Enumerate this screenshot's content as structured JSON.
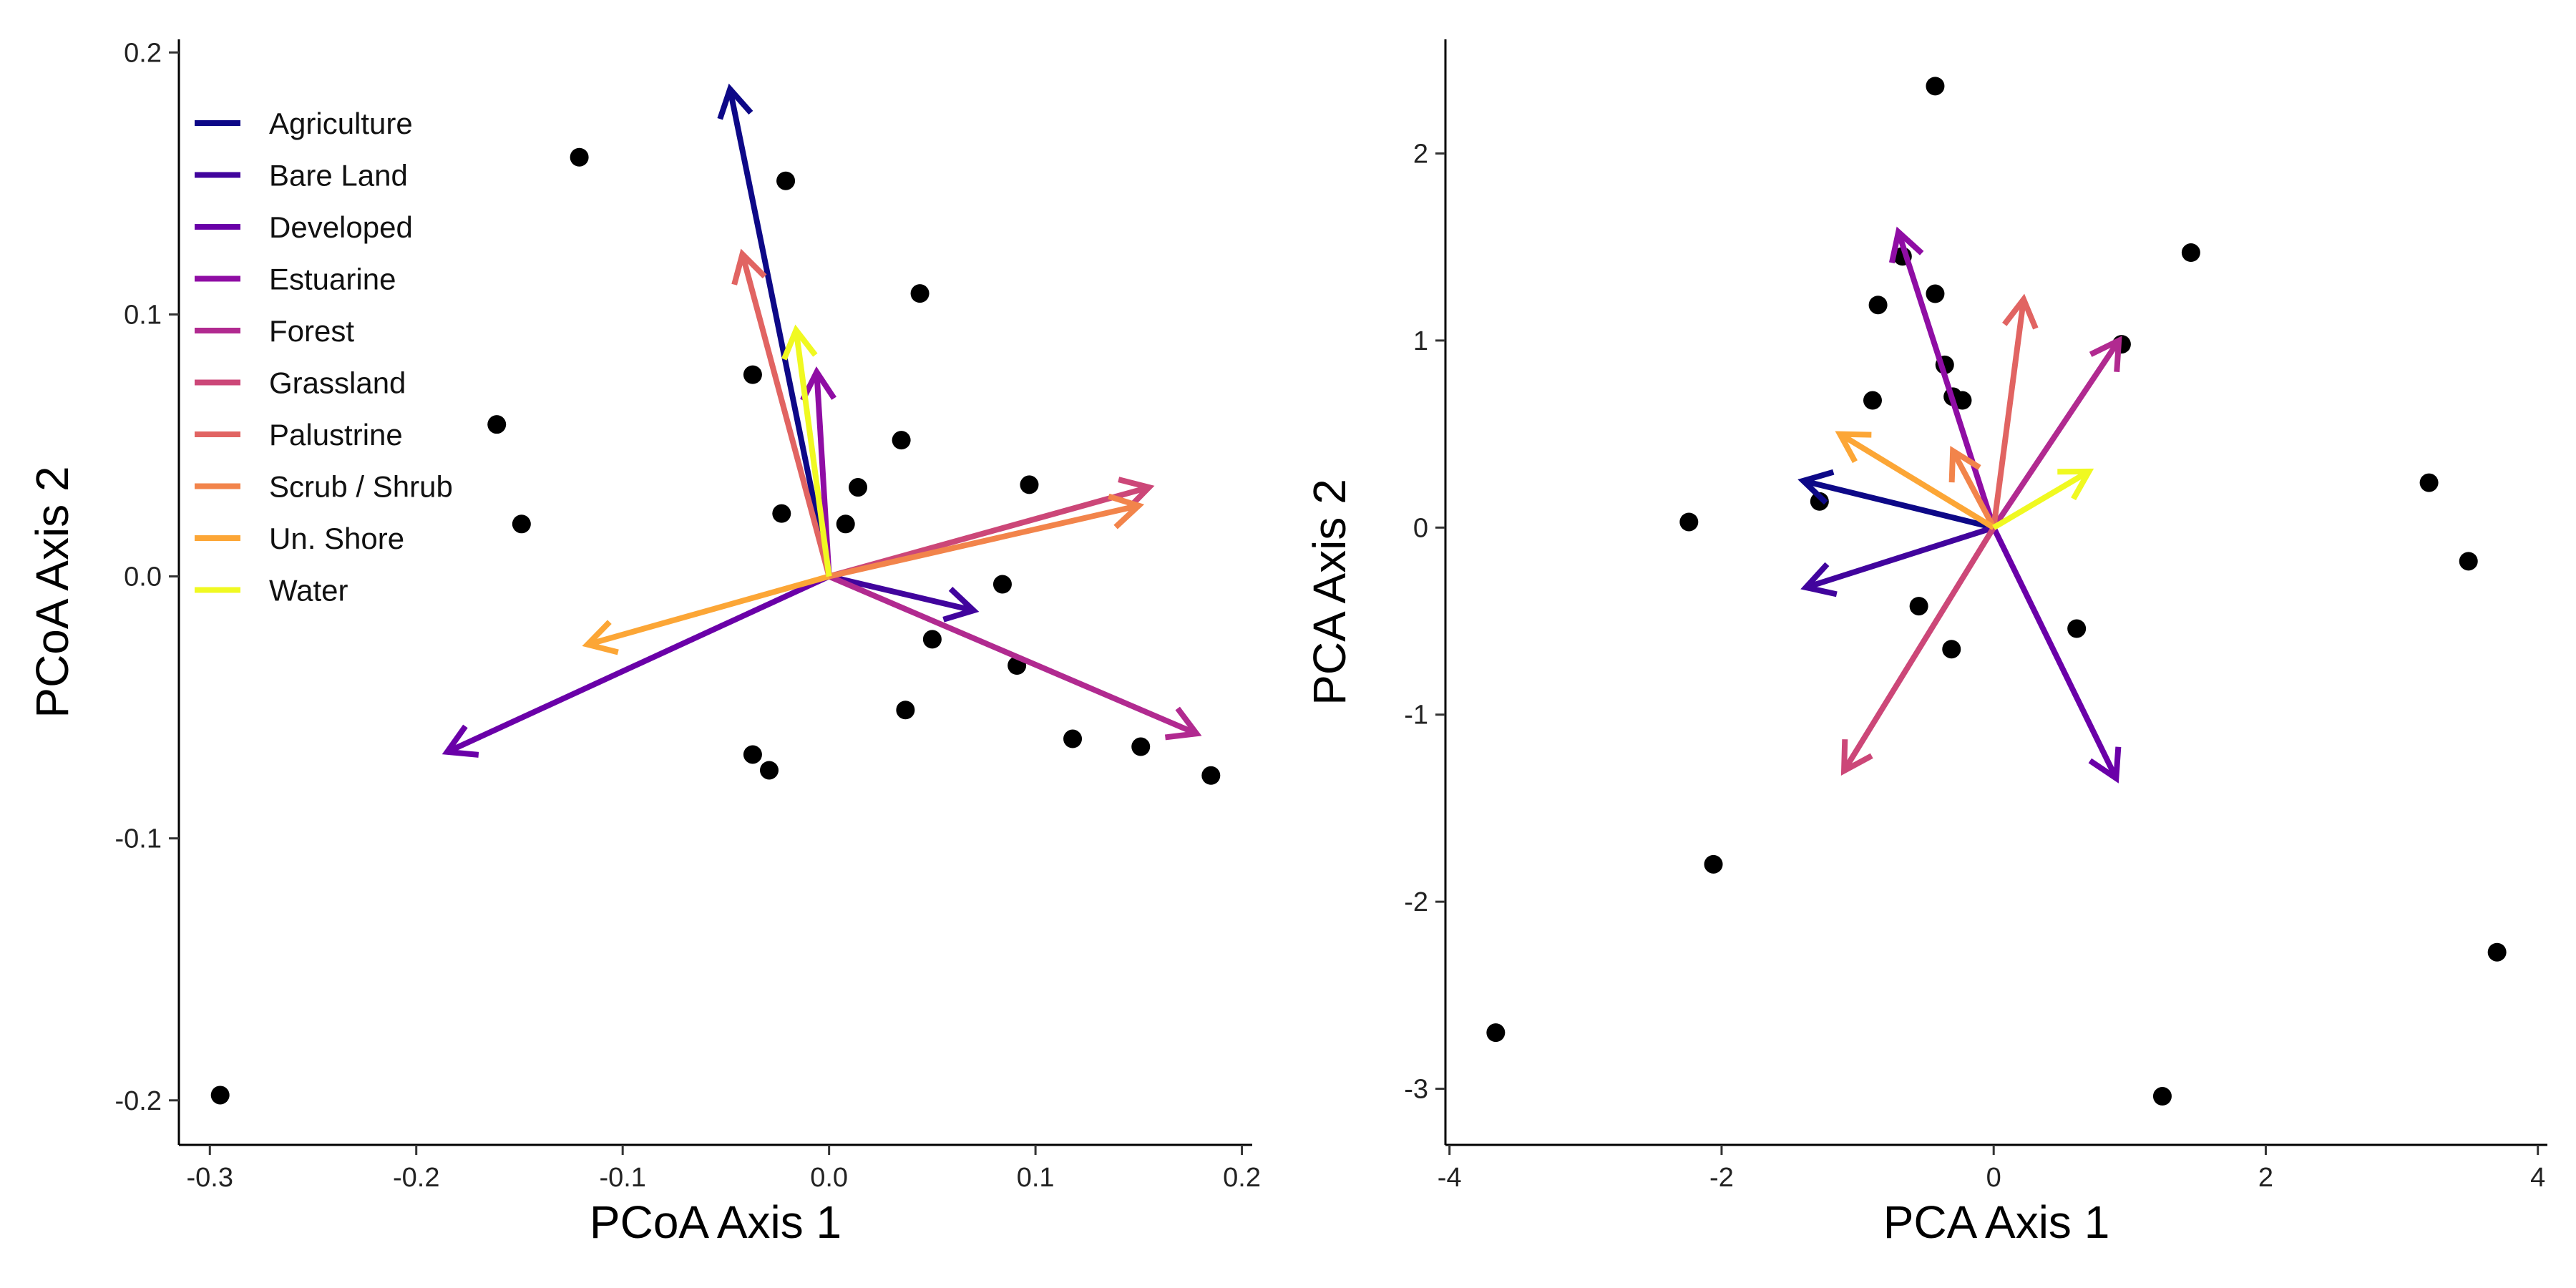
{
  "colors": {
    "Agriculture": "#0d0887",
    "Bare Land": "#41049d",
    "Developed": "#6a00a8",
    "Estuarine": "#8f0da4",
    "Forest": "#b12a90",
    "Grassland": "#cc4778",
    "Palustrine": "#e16462",
    "Scrub / Shrub": "#f2844b",
    "Un. Shore": "#fca636",
    "Water": "#fcce25",
    "Water_arrow": "#f0f921",
    "points": "#000000",
    "axis": "#000000"
  },
  "legend": {
    "items": [
      "Agriculture",
      "Bare Land",
      "Developed",
      "Estuarine",
      "Forest",
      "Grassland",
      "Palustrine",
      "Scrub / Shrub",
      "Un. Shore",
      "Water"
    ]
  },
  "chart_data": [
    {
      "type": "scatter",
      "xlabel": "PCoA Axis 1",
      "ylabel": "PCoA Axis 2",
      "xlim": [
        -0.315,
        0.205
      ],
      "ylim": [
        -0.217,
        0.205
      ],
      "xticks": [
        -0.3,
        -0.2,
        -0.1,
        0.0,
        0.1,
        0.2
      ],
      "xtick_labels": [
        "-0.3",
        "-0.2",
        "-0.1",
        "0.0",
        "0.1",
        "0.2"
      ],
      "yticks": [
        -0.2,
        -0.1,
        0.0,
        0.1,
        0.2
      ],
      "ytick_labels": [
        "-0.2",
        "-0.1",
        "0.0",
        "0.1",
        "0.2"
      ],
      "points": [
        {
          "x": -0.295,
          "y": -0.198
        },
        {
          "x": -0.121,
          "y": 0.16
        },
        {
          "x": -0.021,
          "y": 0.151
        },
        {
          "x": 0.044,
          "y": 0.108
        },
        {
          "x": -0.161,
          "y": 0.058
        },
        {
          "x": -0.149,
          "y": 0.02
        },
        {
          "x": -0.037,
          "y": 0.077
        },
        {
          "x": 0.035,
          "y": 0.052
        },
        {
          "x": 0.097,
          "y": 0.035
        },
        {
          "x": 0.014,
          "y": 0.034
        },
        {
          "x": -0.023,
          "y": 0.024
        },
        {
          "x": 0.008,
          "y": 0.02
        },
        {
          "x": 0.084,
          "y": -0.003
        },
        {
          "x": 0.05,
          "y": -0.024
        },
        {
          "x": 0.091,
          "y": -0.034
        },
        {
          "x": 0.037,
          "y": -0.051
        },
        {
          "x": 0.118,
          "y": -0.062
        },
        {
          "x": 0.151,
          "y": -0.065
        },
        {
          "x": 0.185,
          "y": -0.076
        },
        {
          "x": -0.037,
          "y": -0.068
        },
        {
          "x": -0.029,
          "y": -0.074
        }
      ],
      "arrows": [
        {
          "name": "Agriculture",
          "x": -0.048,
          "y": 0.186
        },
        {
          "name": "Bare Land",
          "x": 0.07,
          "y": -0.013
        },
        {
          "name": "Developed",
          "x": -0.185,
          "y": -0.067
        },
        {
          "name": "Estuarine",
          "x": -0.006,
          "y": 0.078
        },
        {
          "name": "Forest",
          "x": 0.178,
          "y": -0.06
        },
        {
          "name": "Grassland",
          "x": 0.155,
          "y": 0.034
        },
        {
          "name": "Palustrine",
          "x": -0.042,
          "y": 0.123
        },
        {
          "name": "Scrub / Shrub",
          "x": 0.15,
          "y": 0.027
        },
        {
          "name": "Un. Shore",
          "x": -0.117,
          "y": -0.026
        },
        {
          "name": "Water",
          "x": -0.016,
          "y": 0.094
        }
      ]
    },
    {
      "type": "scatter",
      "xlabel": "PCA Axis 1",
      "ylabel": "PCA Axis 2",
      "xlim": [
        -4.03,
        4.07
      ],
      "ylim": [
        -3.3,
        2.61
      ],
      "xticks": [
        -4,
        -2,
        0,
        2,
        4
      ],
      "xtick_labels": [
        "-4",
        "-2",
        "0",
        "2",
        "4"
      ],
      "yticks": [
        -3,
        -2,
        -1,
        0,
        1,
        2
      ],
      "ytick_labels": [
        "-3",
        "-2",
        "-1",
        "0",
        "1",
        "2"
      ],
      "points": [
        {
          "x": -0.43,
          "y": 2.36
        },
        {
          "x": 1.45,
          "y": 1.47
        },
        {
          "x": -0.67,
          "y": 1.45
        },
        {
          "x": -0.43,
          "y": 1.25
        },
        {
          "x": -0.85,
          "y": 1.19
        },
        {
          "x": 0.94,
          "y": 0.98
        },
        {
          "x": -0.36,
          "y": 0.87
        },
        {
          "x": -0.3,
          "y": 0.7
        },
        {
          "x": -0.23,
          "y": 0.68
        },
        {
          "x": -0.89,
          "y": 0.68
        },
        {
          "x": 3.2,
          "y": 0.24
        },
        {
          "x": -1.28,
          "y": 0.14
        },
        {
          "x": -2.24,
          "y": 0.03
        },
        {
          "x": 3.49,
          "y": -0.18
        },
        {
          "x": -0.55,
          "y": -0.42
        },
        {
          "x": 0.61,
          "y": -0.54
        },
        {
          "x": -0.31,
          "y": -0.65
        },
        {
          "x": -2.06,
          "y": -1.8
        },
        {
          "x": 3.7,
          "y": -2.27
        },
        {
          "x": -3.66,
          "y": -2.7
        },
        {
          "x": 1.24,
          "y": -3.04
        }
      ],
      "arrows": [
        {
          "name": "Agriculture",
          "x": -1.4,
          "y": 0.25
        },
        {
          "name": "Bare Land",
          "x": -1.38,
          "y": -0.32
        },
        {
          "name": "Developed",
          "x": 0.9,
          "y": -1.34
        },
        {
          "name": "Estuarine",
          "x": -0.7,
          "y": 1.58
        },
        {
          "name": "Forest",
          "x": 0.92,
          "y": 1.0
        },
        {
          "name": "Grassland",
          "x": -1.1,
          "y": -1.3
        },
        {
          "name": "Palustrine",
          "x": 0.22,
          "y": 1.22
        },
        {
          "name": "Scrub / Shrub",
          "x": -0.3,
          "y": 0.41
        },
        {
          "name": "Un. Shore",
          "x": -1.13,
          "y": 0.5
        },
        {
          "name": "Water",
          "x": 0.7,
          "y": 0.3
        }
      ]
    }
  ]
}
